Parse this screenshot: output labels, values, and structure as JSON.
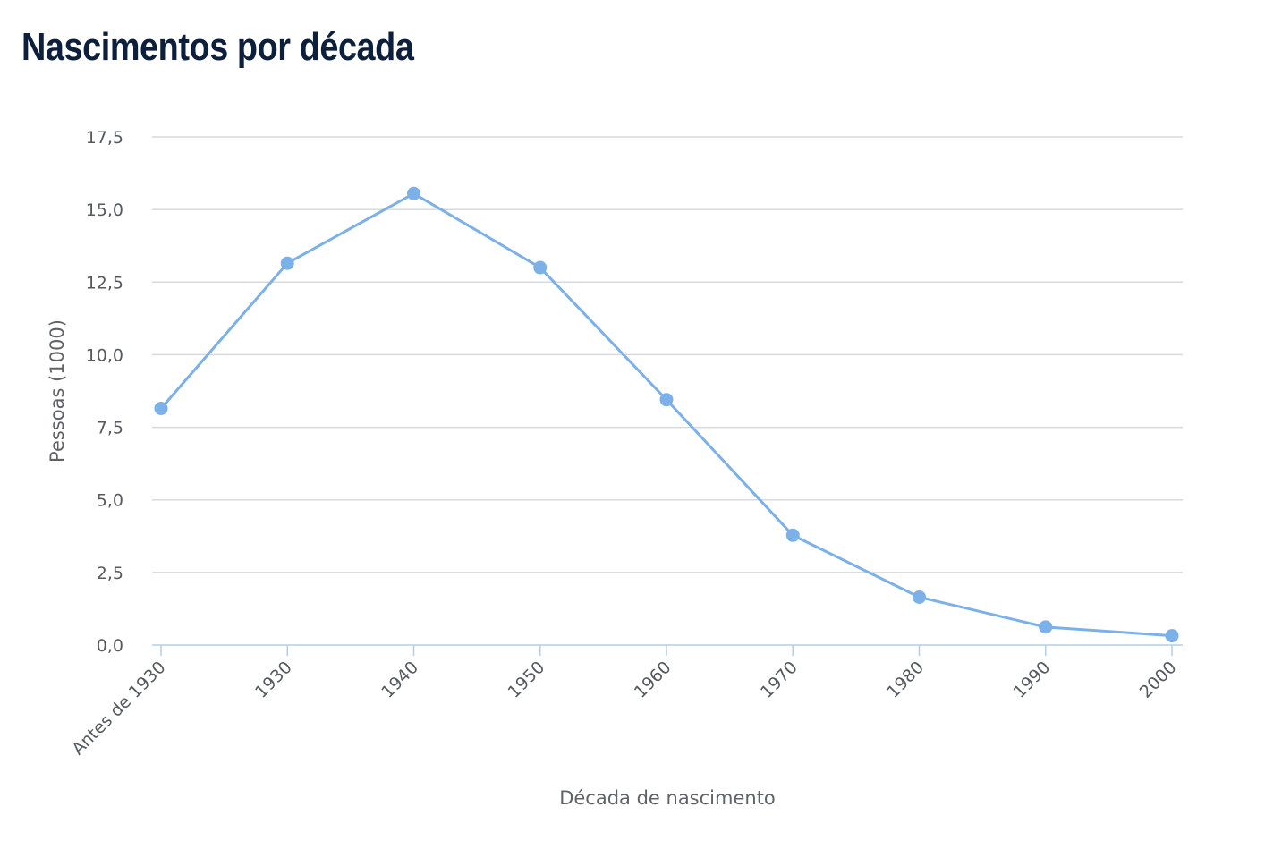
{
  "chart_data": {
    "type": "line",
    "title": "Nascimentos por década",
    "xlabel": "Década de nascimento",
    "ylabel": "Pessoas (1000)",
    "categories": [
      "Antes de 1930",
      "1930",
      "1940",
      "1950",
      "1960",
      "1970",
      "1980",
      "1990",
      "2000"
    ],
    "series": [
      {
        "values": [
          8.15,
          13.15,
          15.55,
          13.0,
          8.45,
          3.78,
          1.65,
          0.62,
          0.32
        ]
      }
    ],
    "ylim": [
      0,
      17.5
    ],
    "yticks": [
      "0,0",
      "2,5",
      "5,0",
      "7,5",
      "10,0",
      "12,5",
      "15,0",
      "17,5"
    ],
    "grid": true,
    "legend": "none",
    "colors": {
      "line": "#7cb0e8",
      "grid": "#d6d9dd",
      "axis": "#b9cde2"
    }
  }
}
